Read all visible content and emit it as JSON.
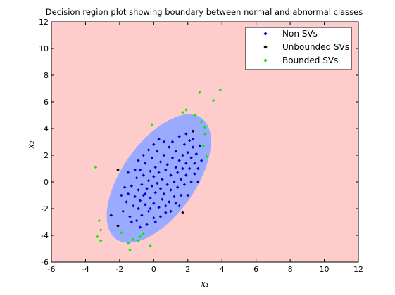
{
  "chart_data": {
    "type": "scatter",
    "title": "Decision region plot showing boundary between normal and abnormal classes",
    "xlabel": "x₁",
    "ylabel": "x₂",
    "xlim": [
      -6,
      12
    ],
    "ylim": [
      -6,
      12
    ],
    "xticks": [
      -6,
      -4,
      -2,
      0,
      2,
      4,
      6,
      8,
      10,
      12
    ],
    "yticks": [
      -6,
      -4,
      -2,
      0,
      2,
      4,
      6,
      8,
      10,
      12
    ],
    "legend_position": "top-right",
    "regions": {
      "abnormal_color": "#ffcccc",
      "normal_color": "#99aaff",
      "normal_ellipse": {
        "center": [
          0.3,
          0.25
        ],
        "semi_major": 4.35,
        "semi_minor": 2.75,
        "angle_deg": 55
      }
    },
    "series": [
      {
        "name": "Non SVs",
        "color": "#0000cc",
        "points": [
          [
            -1.8,
            -2.2
          ],
          [
            -1.6,
            -1.5
          ],
          [
            -1.5,
            -0.9
          ],
          [
            -1.4,
            -2.6
          ],
          [
            -1.3,
            -0.3
          ],
          [
            -1.2,
            -1.8
          ],
          [
            -1.1,
            -1.1
          ],
          [
            -1.0,
            -2.9
          ],
          [
            -1.0,
            0.3
          ],
          [
            -0.9,
            -0.6
          ],
          [
            -0.9,
            -2.0
          ],
          [
            -0.8,
            -1.4
          ],
          [
            -0.8,
            0.9
          ],
          [
            -0.7,
            -0.2
          ],
          [
            -0.7,
            -2.5
          ],
          [
            -0.6,
            -1.0
          ],
          [
            -0.6,
            0.5
          ],
          [
            -0.5,
            -1.7
          ],
          [
            -0.5,
            1.4
          ],
          [
            -0.4,
            -0.5
          ],
          [
            -0.4,
            -3.2
          ],
          [
            -0.3,
            0.1
          ],
          [
            -0.3,
            -2.2
          ],
          [
            -0.2,
            -1.2
          ],
          [
            -0.2,
            0.8
          ],
          [
            -0.1,
            -0.3
          ],
          [
            -0.1,
            1.8
          ],
          [
            0.0,
            -1.6
          ],
          [
            0.0,
            0.4
          ],
          [
            0.0,
            -2.7
          ],
          [
            0.1,
            -0.8
          ],
          [
            0.1,
            1.1
          ],
          [
            0.2,
            -0.1
          ],
          [
            0.2,
            2.3
          ],
          [
            0.3,
            -1.9
          ],
          [
            0.3,
            0.7
          ],
          [
            0.4,
            -0.5
          ],
          [
            0.4,
            1.5
          ],
          [
            0.5,
            -1.3
          ],
          [
            0.5,
            0.2
          ],
          [
            0.6,
            2.0
          ],
          [
            0.6,
            -0.9
          ],
          [
            0.7,
            0.9
          ],
          [
            0.7,
            -2.3
          ],
          [
            0.8,
            -0.2
          ],
          [
            0.8,
            1.3
          ],
          [
            0.9,
            2.6
          ],
          [
            0.9,
            -1.5
          ],
          [
            1.0,
            0.5
          ],
          [
            1.0,
            -0.6
          ],
          [
            1.1,
            1.8
          ],
          [
            1.1,
            3.0
          ],
          [
            1.2,
            0.0
          ],
          [
            1.2,
            -1.1
          ],
          [
            1.3,
            1.1
          ],
          [
            1.3,
            2.3
          ],
          [
            1.4,
            -0.4
          ],
          [
            1.4,
            0.7
          ],
          [
            1.5,
            1.6
          ],
          [
            1.5,
            3.4
          ],
          [
            1.6,
            -1.0
          ],
          [
            1.6,
            0.2
          ],
          [
            1.7,
            2.0
          ],
          [
            1.7,
            1.0
          ],
          [
            1.8,
            2.8
          ],
          [
            1.8,
            -0.2
          ],
          [
            1.9,
            1.4
          ],
          [
            1.9,
            0.5
          ],
          [
            2.0,
            2.2
          ],
          [
            2.1,
            1.0
          ],
          [
            2.1,
            3.1
          ],
          [
            2.2,
            0.0
          ],
          [
            2.2,
            1.8
          ],
          [
            2.3,
            2.6
          ],
          [
            2.4,
            0.6
          ],
          [
            2.4,
            1.4
          ],
          [
            2.5,
            2.1
          ],
          [
            2.6,
            1.0
          ],
          [
            2.7,
            2.7
          ],
          [
            2.8,
            1.6
          ],
          [
            -1.9,
            -1.0
          ],
          [
            -1.7,
            -0.4
          ],
          [
            -1.3,
            -3.0
          ],
          [
            -1.1,
            0.9
          ],
          [
            -0.8,
            -3.4
          ],
          [
            -0.5,
            -0.9
          ],
          [
            -0.2,
            -2.0
          ],
          [
            0.1,
            -3.0
          ],
          [
            0.4,
            -2.6
          ],
          [
            0.7,
            -1.8
          ],
          [
            1.0,
            -2.2
          ],
          [
            1.3,
            -1.6
          ],
          [
            -0.3,
            2.4
          ],
          [
            0.0,
            2.8
          ],
          [
            0.3,
            3.2
          ],
          [
            0.6,
            3.0
          ],
          [
            -1.5,
            0.7
          ],
          [
            -0.9,
            1.6
          ],
          [
            -0.6,
            2.0
          ],
          [
            1.9,
            3.6
          ],
          [
            2.3,
            3.2
          ],
          [
            2.6,
            0.0
          ],
          [
            2.0,
            -1.0
          ],
          [
            1.5,
            -1.8
          ]
        ]
      },
      {
        "name": "Unbounded SVs",
        "color": "#000000",
        "points": [
          [
            -2.1,
            0.9
          ],
          [
            -2.1,
            -3.3
          ],
          [
            1.7,
            -2.3
          ],
          [
            2.3,
            3.8
          ],
          [
            -2.5,
            -2.5
          ]
        ]
      },
      {
        "name": "Bounded SVs",
        "color": "#00ee00",
        "points": [
          [
            -3.4,
            1.1
          ],
          [
            -3.2,
            -2.9
          ],
          [
            -3.1,
            -3.6
          ],
          [
            -3.3,
            -4.1
          ],
          [
            -3.1,
            -4.4
          ],
          [
            -1.5,
            -4.6
          ],
          [
            -1.2,
            -4.3
          ],
          [
            -1.4,
            -5.1
          ],
          [
            -0.9,
            -4.4
          ],
          [
            -0.8,
            -4.1
          ],
          [
            -0.2,
            -4.8
          ],
          [
            -0.1,
            4.3
          ],
          [
            1.7,
            5.2
          ],
          [
            1.9,
            5.4
          ],
          [
            2.4,
            5.0
          ],
          [
            2.7,
            6.7
          ],
          [
            2.8,
            4.5
          ],
          [
            3.0,
            3.6
          ],
          [
            3.0,
            4.1
          ],
          [
            2.9,
            2.7
          ],
          [
            3.1,
            1.9
          ],
          [
            3.5,
            6.1
          ],
          [
            3.9,
            6.9
          ],
          [
            -1.9,
            -3.8
          ],
          [
            -0.6,
            -3.9
          ]
        ]
      }
    ]
  }
}
